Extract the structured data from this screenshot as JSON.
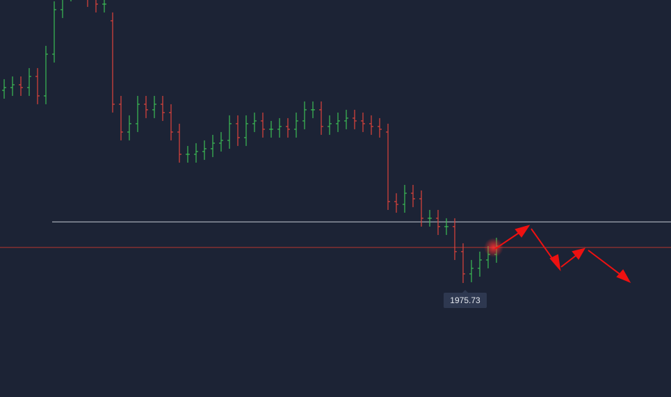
{
  "chart_data": {
    "type": "ohlc",
    "open": [
      2045,
      2046,
      2047,
      2046,
      2050,
      2043,
      2058,
      2074,
      2080,
      2082,
      2082,
      2078,
      2076,
      2070,
      2040,
      2030,
      2033,
      2040,
      2038,
      2040,
      2037,
      2030,
      2022,
      2022,
      2023,
      2024,
      2026,
      2027,
      2033,
      2028,
      2033,
      2034,
      2031,
      2031,
      2032,
      2031,
      2034,
      2038,
      2038,
      2032,
      2033,
      2034,
      2035,
      2034,
      2033,
      2032,
      2030,
      2005,
      2004,
      2008,
      2006,
      1999,
      1999,
      1996,
      1996,
      1987,
      1979,
      1981,
      1984,
      1986
    ],
    "high": [
      2049,
      2050,
      2050,
      2053,
      2053,
      2061,
      2077,
      2083,
      2085,
      2085,
      2085,
      2081,
      2079,
      2073,
      2043,
      2036,
      2043,
      2043,
      2043,
      2043,
      2040,
      2033,
      2025,
      2026,
      2027,
      2029,
      2030,
      2036,
      2036,
      2036,
      2037,
      2037,
      2034,
      2035,
      2035,
      2037,
      2041,
      2041,
      2041,
      2036,
      2037,
      2038,
      2038,
      2037,
      2036,
      2035,
      2033,
      2008,
      2011,
      2011,
      2009,
      2002,
      2002,
      1999,
      1999,
      1990,
      1984,
      1987,
      1989,
      1992
    ],
    "low": [
      2042,
      2043,
      2043,
      2043,
      2040,
      2040,
      2055,
      2071,
      2077,
      2079,
      2075,
      2073,
      2073,
      2037,
      2027,
      2027,
      2030,
      2035,
      2035,
      2034,
      2027,
      2019,
      2019,
      2019,
      2020,
      2021,
      2023,
      2024,
      2025,
      2025,
      2030,
      2028,
      2028,
      2028,
      2028,
      2028,
      2031,
      2035,
      2029,
      2029,
      2030,
      2031,
      2031,
      2030,
      2029,
      2028,
      2002,
      2001,
      2001,
      2003,
      1996,
      1996,
      1993,
      1993,
      1984,
      1975.73,
      1976,
      1978,
      1981,
      1983
    ],
    "close": [
      2046,
      2047,
      2046,
      2050,
      2043,
      2058,
      2074,
      2080,
      2082,
      2082,
      2078,
      2076,
      2076,
      2040,
      2030,
      2033,
      2040,
      2038,
      2040,
      2037,
      2030,
      2022,
      2022,
      2023,
      2024,
      2026,
      2027,
      2033,
      2028,
      2033,
      2034,
      2031,
      2031,
      2032,
      2031,
      2034,
      2038,
      2038,
      2032,
      2033,
      2034,
      2035,
      2034,
      2033,
      2032,
      2031,
      2005,
      2004,
      2008,
      2006,
      1999,
      1999,
      1996,
      1996,
      1987,
      1979,
      1981,
      1984,
      1986,
      1989
    ],
    "up_color": "#3cbf55",
    "down_color": "#e0443c",
    "ylim": [
      1934.73,
      2077.48
    ],
    "levels": [
      {
        "value": 1997.7,
        "color": "#c9ced6"
      },
      {
        "value": 1988.5,
        "color": "#b8372f"
      }
    ],
    "low_label_index": 55
  }
}
